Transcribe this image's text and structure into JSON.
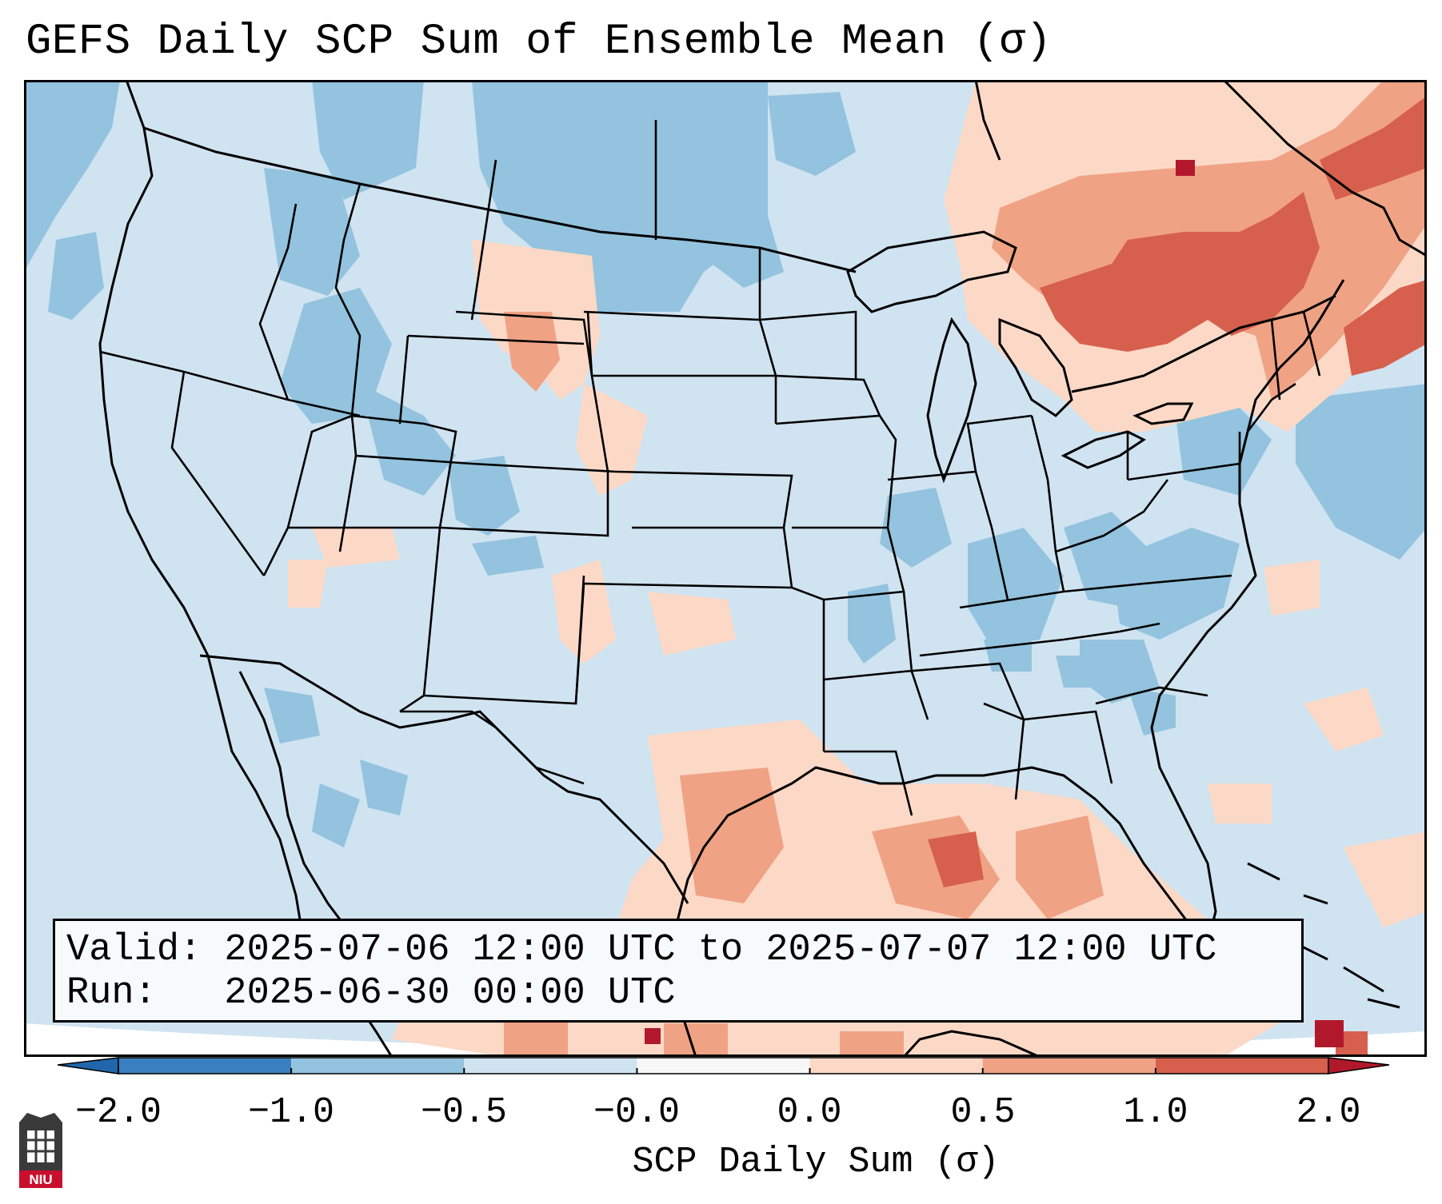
{
  "title": "GEFS Daily SCP Sum of Ensemble Mean (σ)",
  "info": {
    "valid": "Valid: 2025-07-06 12:00 UTC to 2025-07-07 12:00 UTC",
    "run": "Run:   2025-06-30 00:00 UTC"
  },
  "colorbar": {
    "label": "SCP Daily Sum (σ)",
    "ticks": [
      "−2.0",
      "−1.0",
      "−0.5",
      "−0.0",
      "0.0",
      "0.5",
      "1.0",
      "2.0"
    ],
    "colors": [
      "#3a7fbf",
      "#93c3de",
      "#d0e3f0",
      "#f7f7f7",
      "#fcd9c6",
      "#f0a285",
      "#d6604d",
      "#b2182b"
    ],
    "extend_low_color": "#2166ac",
    "extend_high_color": "#b2182b"
  },
  "map": {
    "background_color": "#d0e3f0",
    "outside_color": "#ffffff",
    "line_color": "#000000",
    "region": "Contiguous United States"
  },
  "logo": {
    "text": "NIU",
    "color": "#c8102e"
  }
}
